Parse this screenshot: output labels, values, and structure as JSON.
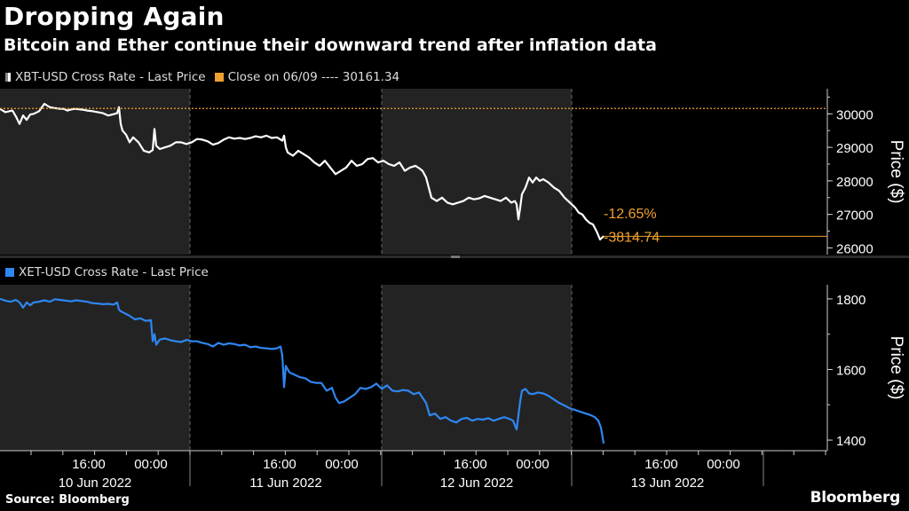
{
  "header": {
    "title": "Dropping Again",
    "subtitle": "Bitcoin and Ether continue their downward trend after inflation data"
  },
  "footer": {
    "source": "Source: Bloomberg",
    "brand": "Bloomberg"
  },
  "colors": {
    "btc": "#ffffff",
    "eth": "#2f86f0",
    "close_line": "#f0a030",
    "annotation": "#f0a030",
    "shade": "#232323",
    "axis": "#cccccc"
  },
  "chart_data": [
    {
      "type": "line",
      "legend": [
        {
          "label": "XBT-USD Cross Rate - Last Price",
          "color": "#ffffff"
        },
        {
          "label": "Close on 06/09 ---- 30161.34",
          "color": "#f0a030"
        }
      ],
      "series": [
        {
          "name": "XBT-USD Cross Rate - Last Price",
          "color": "#ffffff",
          "x": [
            0,
            6,
            14,
            18,
            22,
            26,
            30,
            34,
            38,
            44,
            50,
            56,
            62,
            68,
            72,
            76,
            80,
            84,
            88,
            91,
            94,
            98,
            104,
            110,
            116,
            122,
            128,
            132,
            134,
            136,
            138,
            142,
            146,
            150,
            156,
            162,
            168,
            172,
            174,
            176,
            180,
            186,
            192,
            198,
            204,
            210,
            216,
            222,
            228,
            234,
            240,
            246,
            252,
            258,
            264,
            270,
            276,
            282,
            288,
            294,
            300,
            306,
            312,
            318,
            320,
            322,
            324,
            330,
            336,
            342,
            348,
            354,
            360,
            366,
            372,
            378,
            384,
            390,
            396,
            402,
            408,
            414,
            420,
            426,
            432,
            438,
            444,
            450,
            456,
            462,
            468,
            472,
            476,
            480,
            482,
            486,
            492,
            498,
            504,
            510,
            516,
            522,
            528,
            534,
            540,
            546,
            552,
            558,
            564,
            570,
            576,
            580,
            582,
            584,
            586,
            588,
            592,
            596,
            600,
            604,
            608,
            612,
            618,
            624,
            630,
            636,
            642,
            648,
            652,
            656,
            660,
            664,
            668,
            672,
            676,
            680
          ],
          "y": [
            30150,
            30050,
            30100,
            29920,
            29700,
            29950,
            29820,
            29980,
            30000,
            30080,
            30300,
            30200,
            30170,
            30150,
            30150,
            30100,
            30130,
            30150,
            30140,
            30130,
            30120,
            30100,
            30080,
            30050,
            30020,
            29950,
            29990,
            30020,
            30200,
            29700,
            29500,
            29380,
            29150,
            29300,
            29150,
            28900,
            28850,
            28920,
            29550,
            29050,
            28950,
            29000,
            29050,
            29150,
            29150,
            29100,
            29150,
            29250,
            29230,
            29180,
            29080,
            29130,
            29230,
            29300,
            29260,
            29280,
            29250,
            29280,
            29330,
            29300,
            29350,
            29280,
            29300,
            29200,
            29350,
            29000,
            28850,
            28750,
            28900,
            28800,
            28700,
            28550,
            28450,
            28600,
            28400,
            28200,
            28300,
            28400,
            28600,
            28450,
            28500,
            28650,
            28680,
            28550,
            28600,
            28500,
            28450,
            28550,
            28300,
            28400,
            28450,
            28380,
            28300,
            28100,
            27900,
            27500,
            27400,
            27500,
            27350,
            27300,
            27350,
            27400,
            27500,
            27450,
            27480,
            27550,
            27500,
            27450,
            27400,
            27500,
            27350,
            27400,
            27300,
            26850,
            27200,
            27600,
            27800,
            28100,
            27950,
            28100,
            28000,
            28050,
            27950,
            27800,
            27700,
            27500,
            27350,
            27200,
            27050,
            27000,
            26850,
            26750,
            26700,
            26500,
            26250,
            26350
          ]
        },
        {
          "name": "Close on 06/09",
          "color": "#f0a030",
          "y": 30161.34
        }
      ],
      "annotations": [
        {
          "text": "-12.65%",
          "color": "#f0a030",
          "y": 27050
        },
        {
          "text": "-3814.74",
          "color": "#f0a030",
          "y": 26346.6
        }
      ],
      "last_value": 26346.6,
      "ylabel": "Price ($)",
      "ylim": [
        25800,
        30750
      ],
      "yticks": [
        26000,
        27000,
        28000,
        29000,
        30000
      ],
      "ytick_labels": [
        "26000",
        "27000",
        "28000",
        "29000",
        "30000"
      ],
      "grid": false,
      "legend_position": "top-left"
    },
    {
      "type": "line",
      "legend": [
        {
          "label": "XET-USD Cross Rate - Last Price",
          "color": "#2f86f0"
        }
      ],
      "series": [
        {
          "name": "XET-USD Cross Rate - Last Price",
          "color": "#2f86f0",
          "x": [
            0,
            6,
            12,
            18,
            22,
            26,
            30,
            34,
            38,
            44,
            50,
            56,
            62,
            68,
            74,
            80,
            86,
            92,
            98,
            104,
            110,
            116,
            122,
            128,
            132,
            134,
            136,
            140,
            146,
            152,
            158,
            164,
            170,
            172,
            174,
            176,
            180,
            186,
            192,
            198,
            204,
            210,
            216,
            222,
            228,
            234,
            240,
            246,
            252,
            258,
            264,
            270,
            276,
            282,
            288,
            294,
            300,
            306,
            312,
            316,
            318,
            320,
            322,
            326,
            332,
            338,
            344,
            350,
            356,
            362,
            368,
            374,
            378,
            382,
            388,
            394,
            400,
            406,
            412,
            418,
            424,
            430,
            436,
            442,
            448,
            454,
            460,
            466,
            472,
            476,
            480,
            484,
            490,
            496,
            502,
            508,
            514,
            520,
            526,
            532,
            538,
            544,
            550,
            556,
            562,
            568,
            574,
            578,
            582,
            584,
            586,
            588,
            592,
            596,
            600,
            606,
            612,
            618,
            624,
            630,
            636,
            642,
            648,
            654,
            660,
            666,
            670,
            674,
            677,
            680
          ],
          "y": [
            1800,
            1795,
            1792,
            1797,
            1790,
            1775,
            1790,
            1782,
            1790,
            1792,
            1796,
            1792,
            1799,
            1797,
            1795,
            1793,
            1796,
            1794,
            1792,
            1788,
            1787,
            1785,
            1786,
            1784,
            1790,
            1770,
            1765,
            1760,
            1752,
            1742,
            1745,
            1738,
            1740,
            1680,
            1700,
            1670,
            1685,
            1688,
            1683,
            1680,
            1678,
            1684,
            1680,
            1680,
            1675,
            1672,
            1665,
            1675,
            1670,
            1674,
            1672,
            1668,
            1670,
            1663,
            1665,
            1661,
            1660,
            1658,
            1660,
            1665,
            1640,
            1550,
            1610,
            1592,
            1585,
            1578,
            1575,
            1565,
            1562,
            1562,
            1540,
            1548,
            1520,
            1505,
            1510,
            1520,
            1530,
            1548,
            1545,
            1550,
            1560,
            1545,
            1555,
            1540,
            1538,
            1542,
            1540,
            1530,
            1535,
            1520,
            1505,
            1470,
            1475,
            1460,
            1465,
            1455,
            1450,
            1460,
            1463,
            1455,
            1460,
            1458,
            1462,
            1455,
            1460,
            1465,
            1460,
            1455,
            1430,
            1470,
            1510,
            1540,
            1545,
            1532,
            1530,
            1535,
            1532,
            1525,
            1515,
            1505,
            1498,
            1490,
            1485,
            1480,
            1475,
            1470,
            1465,
            1455,
            1435,
            1390
          ]
        }
      ],
      "ylabel": "Price ($)",
      "ylim": [
        1370,
        1840
      ],
      "yticks": [
        1400,
        1600,
        1800
      ],
      "ytick_labels": [
        "1400",
        "1600",
        "1800"
      ],
      "grid": false,
      "legend_position": "top-left"
    }
  ],
  "x_axis": {
    "time_labels": [
      "16:00",
      "00:00",
      "16:00",
      "00:00",
      "16:00",
      "00:00",
      "16:00",
      "00:00"
    ],
    "date_labels": [
      "10 Jun 2022",
      "11 Jun 2022",
      "12 Jun 2022",
      "13 Jun 2022"
    ]
  }
}
